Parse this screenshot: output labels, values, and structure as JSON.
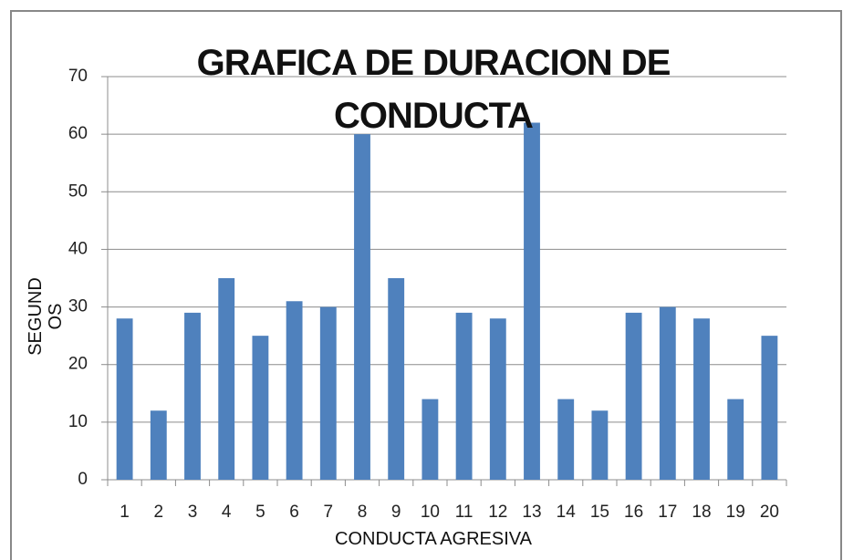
{
  "chart_data": {
    "type": "bar",
    "title": "GRAFICA DE DURACION DE CONDUCTA",
    "x_label": "CONDUCTA AGRESIVA",
    "y_label": "SEGUNDOS",
    "categories": [
      "1",
      "2",
      "3",
      "4",
      "5",
      "6",
      "7",
      "8",
      "9",
      "10",
      "11",
      "12",
      "13",
      "14",
      "15",
      "16",
      "17",
      "18",
      "19",
      "20"
    ],
    "values": [
      28,
      12,
      29,
      35,
      25,
      31,
      30,
      60,
      35,
      14,
      29,
      28,
      62,
      14,
      12,
      29,
      30,
      28,
      14,
      25
    ],
    "color": "#4f81bd",
    "ylim": [
      0,
      70
    ],
    "yticks": [
      0,
      10,
      20,
      30,
      40,
      50,
      60,
      70
    ],
    "grid": true
  }
}
